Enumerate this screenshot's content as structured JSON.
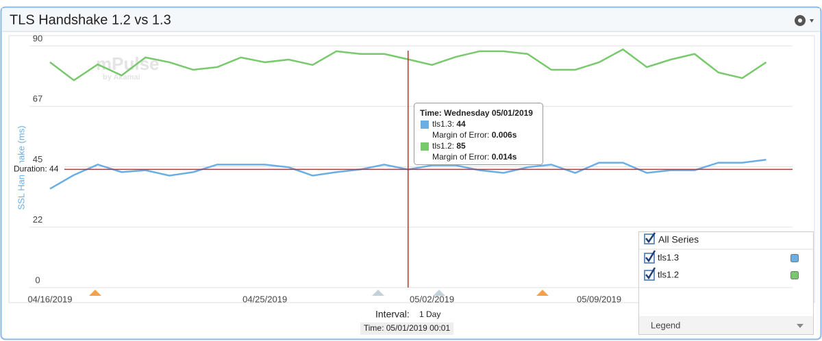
{
  "chart_data": {
    "type": "line",
    "title": "TLS Handshake 1.2 vs 1.3",
    "watermark": "mPulse",
    "watermark_sub": "by Akamai",
    "y_label": "SSL Handshake (ms)",
    "x": [
      "04/16/2019",
      "04/17/2019",
      "04/18/2019",
      "04/19/2019",
      "04/20/2019",
      "04/21/2019",
      "04/22/2019",
      "04/23/2019",
      "04/24/2019",
      "04/25/2019",
      "04/26/2019",
      "04/27/2019",
      "04/28/2019",
      "04/29/2019",
      "04/30/2019",
      "05/01/2019",
      "05/02/2019",
      "05/03/2019",
      "05/04/2019",
      "05/05/2019",
      "05/06/2019",
      "05/07/2019",
      "05/08/2019",
      "05/09/2019",
      "05/10/2019",
      "05/11/2019",
      "05/12/2019",
      "05/13/2019",
      "05/14/2019",
      "05/15/2019",
      "05/16/2019"
    ],
    "xticks": [
      "04/16/2019",
      "04/25/2019",
      "05/02/2019",
      "05/09/2019"
    ],
    "ylim": [
      0,
      90
    ],
    "yticks": [
      0,
      {
        "value": 22.5,
        "label": "22"
      },
      45,
      {
        "value": 67.5,
        "label": "67"
      },
      90
    ],
    "grid": true,
    "series": [
      {
        "name": "tls1.3",
        "color": "#6aaee6",
        "values": [
          36.8,
          41.9,
          45.8,
          43.0,
          43.7,
          41.7,
          43.0,
          45.8,
          45.8,
          45.8,
          44.8,
          41.7,
          43.0,
          44.0,
          45.8,
          44,
          45.5,
          45.5,
          43.7,
          42.7,
          44.8,
          45.8,
          42.7,
          46.5,
          46.5,
          42.7,
          43.7,
          43.7,
          46.5,
          46.5,
          47.6
        ]
      },
      {
        "name": "tls1.2",
        "color": "#77c96b",
        "values": [
          83.9,
          77.2,
          83.1,
          79.0,
          85.7,
          83.9,
          81.1,
          82.1,
          85.7,
          83.9,
          84.9,
          82.9,
          88.0,
          87.0,
          87.0,
          85,
          82.9,
          85.9,
          88.0,
          88.0,
          87.0,
          81.1,
          81.1,
          83.9,
          88.7,
          82.1,
          84.9,
          87.0,
          80.1,
          78.0,
          83.9
        ]
      }
    ],
    "reference_line": {
      "label": "Duration:",
      "value": 44,
      "color": "#d9262b"
    },
    "crosshair_index": 15,
    "tooltip": {
      "time": "Time: Wednesday 05/01/2019",
      "series_labels": [
        "tls1.3:",
        "tls1.2:"
      ],
      "margin_label": "Margin of Error:",
      "margins": [
        "0.006s",
        "0.014s"
      ]
    },
    "interval_label": "Interval:",
    "interval_value": "1 Day",
    "time_footer": "Time: 05/01/2019 00:01",
    "legend": {
      "all": "All Series",
      "footer": "Legend"
    }
  }
}
